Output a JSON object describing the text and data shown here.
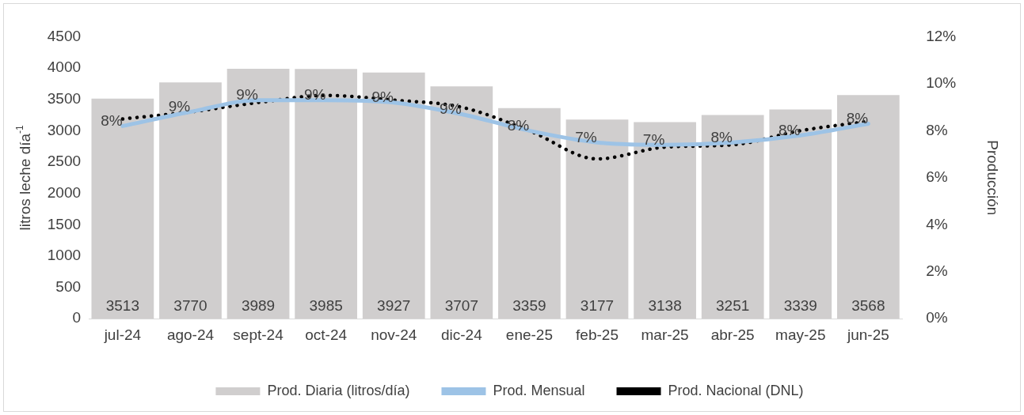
{
  "chart_data": {
    "type": "bar",
    "categories": [
      "jul-24",
      "ago-24",
      "sept-24",
      "oct-24",
      "nov-24",
      "dic-24",
      "ene-25",
      "feb-25",
      "mar-25",
      "abr-25",
      "may-25",
      "jun-25"
    ],
    "series": [
      {
        "name": "Prod. Diaria (litros/día)",
        "color": "#d0cece",
        "values": [
          3513,
          3770,
          3989,
          3985,
          3927,
          3707,
          3359,
          3177,
          3138,
          3251,
          3339,
          3568
        ],
        "value_labels": [
          "3513",
          "3770",
          "3989",
          "3985",
          "3927",
          "3707",
          "3359",
          "3177",
          "3138",
          "3251",
          "3339",
          "3568"
        ]
      },
      {
        "name": "Prod. Mensual",
        "type": "line",
        "axis": "y2",
        "color": "#9dc3e6",
        "line_style": "solid",
        "values": [
          8.2,
          8.8,
          9.3,
          9.3,
          9.2,
          8.7,
          8.0,
          7.5,
          7.4,
          7.5,
          7.8,
          8.3
        ],
        "value_labels": [
          "8%",
          "9%",
          "9%",
          "9%",
          "9%",
          "9%",
          "8%",
          "7%",
          "7%",
          "8%",
          "8%",
          "8%"
        ]
      },
      {
        "name": "Prod. Nacional (DNL)",
        "type": "line",
        "axis": "y2",
        "color": "#000000",
        "line_style": "dotted",
        "values": [
          8.5,
          8.8,
          9.2,
          9.5,
          9.3,
          9.0,
          8.0,
          6.8,
          7.3,
          7.4,
          8.0,
          8.4
        ]
      }
    ],
    "ylabel": "litros leche día$^{-1}$",
    "y2label": "Producción",
    "ylim": [
      0,
      4500
    ],
    "yticks": [
      0,
      500,
      1000,
      1500,
      2000,
      2500,
      3000,
      3500,
      4000,
      4500
    ],
    "y2lim": [
      0,
      12
    ],
    "y2ticks": [
      {
        "value": 0,
        "label": "0%"
      },
      {
        "value": 2,
        "label": "2%"
      },
      {
        "value": 4,
        "label": "4%"
      },
      {
        "value": 6,
        "label": "6%"
      },
      {
        "value": 8,
        "label": "8%"
      },
      {
        "value": 10,
        "label": "10%"
      },
      {
        "value": 12,
        "label": "12%"
      }
    ],
    "grid": false,
    "legend": "bottom",
    "marker": "none"
  }
}
